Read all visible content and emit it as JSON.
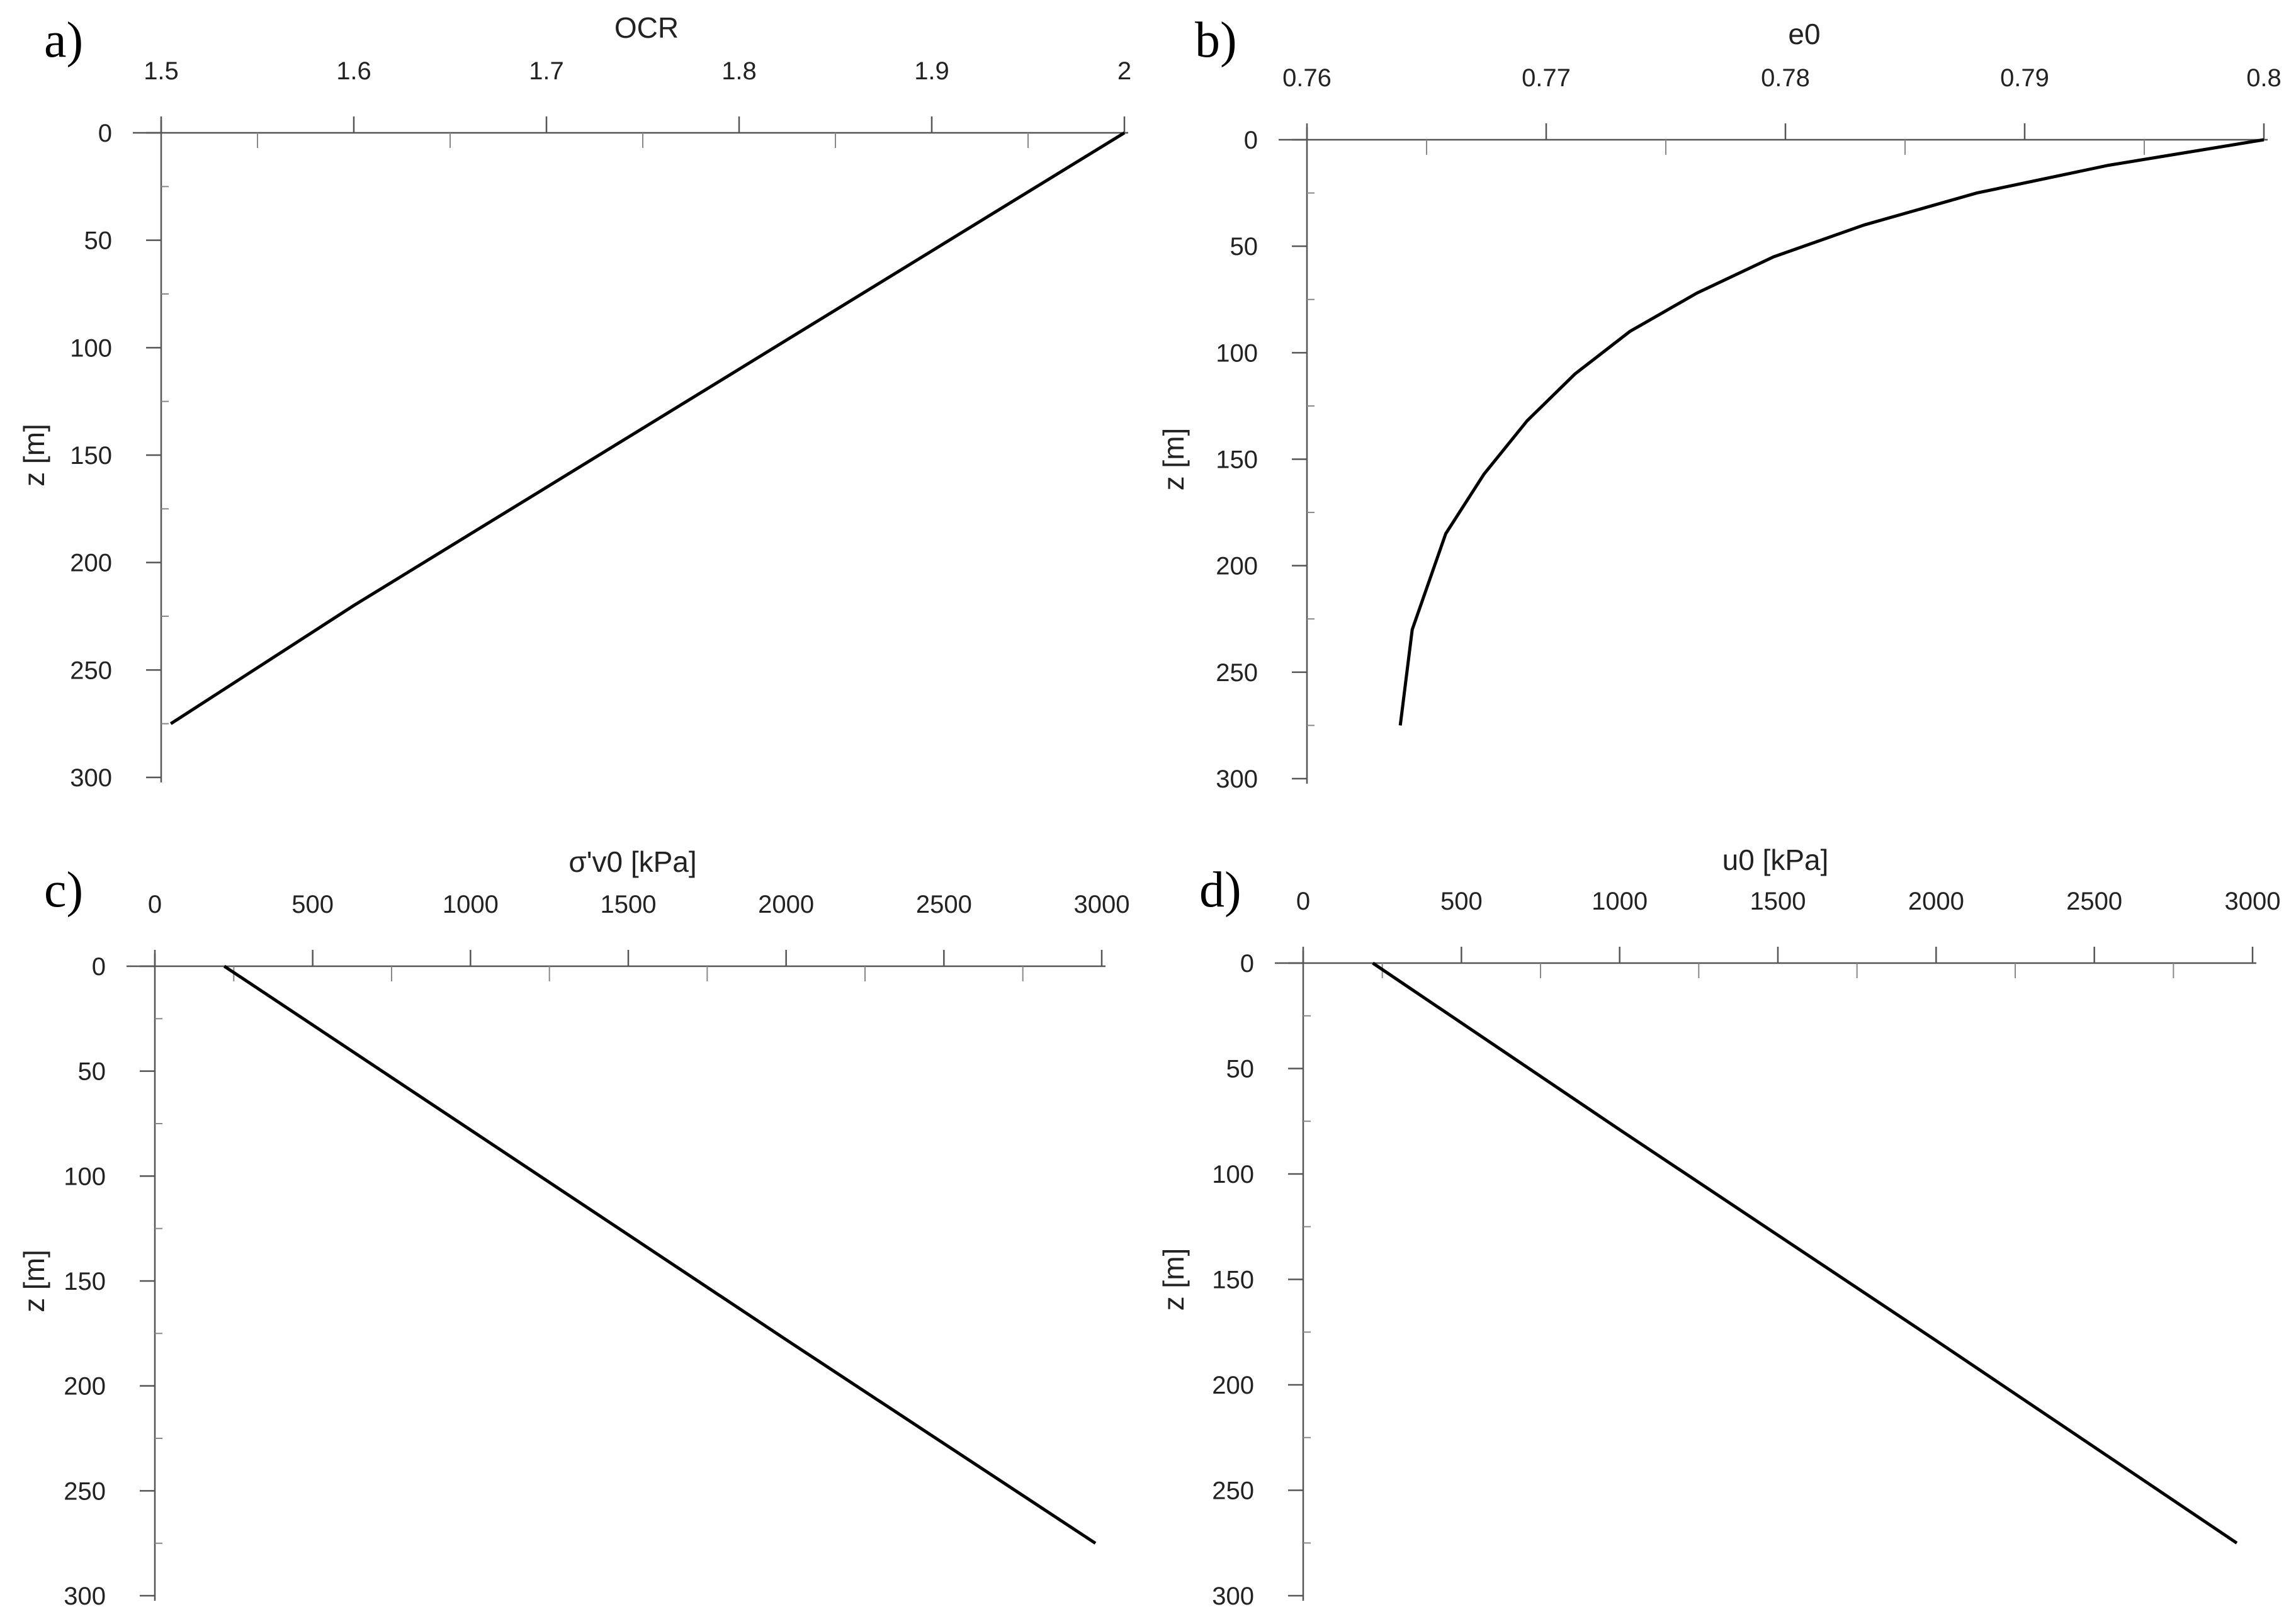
{
  "chart_data": [
    {
      "panel_letter": "a)",
      "type": "line",
      "title": "",
      "xlabel": "OCR",
      "ylabel": "z [m]",
      "x_axis_position": "top",
      "y_axis_inverted": true,
      "xlim": [
        1.5,
        2.0
      ],
      "ylim": [
        0,
        300
      ],
      "x_ticks": [
        1.5,
        1.6,
        1.7,
        1.8,
        1.9,
        2.0
      ],
      "x_tick_labels": [
        "1.5",
        "1.6",
        "1.7",
        "1.8",
        "1.9",
        "2"
      ],
      "y_ticks": [
        0,
        50,
        100,
        150,
        200,
        250,
        300
      ],
      "y_tick_labels": [
        "0",
        "50",
        "100",
        "150",
        "200",
        "250",
        "300"
      ],
      "grid": false,
      "series": [
        {
          "x": [
            2.0,
            1.9,
            1.8,
            1.7,
            1.6,
            1.505
          ],
          "y": [
            0,
            55,
            110,
            165,
            220,
            275
          ]
        }
      ]
    },
    {
      "panel_letter": "b)",
      "type": "line",
      "title": "",
      "xlabel": "e0",
      "ylabel": "z [m]",
      "x_axis_position": "top",
      "y_axis_inverted": true,
      "xlim": [
        0.76,
        0.8
      ],
      "ylim": [
        0,
        300
      ],
      "x_ticks": [
        0.76,
        0.77,
        0.78,
        0.79,
        0.8
      ],
      "x_tick_labels": [
        "0.76",
        "0.77",
        "0.78",
        "0.79",
        "0.8"
      ],
      "y_ticks": [
        0,
        50,
        100,
        150,
        200,
        250,
        300
      ],
      "y_tick_labels": [
        "0",
        "50",
        "100",
        "150",
        "200",
        "250",
        "300"
      ],
      "grid": false,
      "series": [
        {
          "x": [
            0.8,
            0.7935,
            0.788,
            0.7833,
            0.7795,
            0.7763,
            0.7735,
            0.7712,
            0.7692,
            0.7674,
            0.7658,
            0.7644,
            0.7639
          ],
          "y": [
            0,
            12,
            25,
            40,
            55,
            72,
            90,
            110,
            132,
            157,
            185,
            230,
            275
          ]
        }
      ]
    },
    {
      "panel_letter": "c)",
      "type": "line",
      "title": "",
      "xlabel": "σ'v0 [kPa]",
      "ylabel": "z [m]",
      "x_axis_position": "top",
      "y_axis_inverted": true,
      "xlim": [
        0,
        3000
      ],
      "ylim": [
        0,
        300
      ],
      "x_ticks": [
        0,
        500,
        1000,
        1500,
        2000,
        2500,
        3000
      ],
      "x_tick_labels": [
        "0",
        "500",
        "1000",
        "1500",
        "2000",
        "2500",
        "3000"
      ],
      "y_ticks": [
        0,
        50,
        100,
        150,
        200,
        250,
        300
      ],
      "y_tick_labels": [
        "0",
        "50",
        "100",
        "150",
        "200",
        "250",
        "300"
      ],
      "grid": false,
      "series": [
        {
          "x": [
            220,
            1000,
            2000,
            2980
          ],
          "y": [
            0,
            78,
            178,
            275
          ]
        }
      ]
    },
    {
      "panel_letter": "d)",
      "type": "line",
      "title": "",
      "xlabel": "u0 [kPa]",
      "ylabel": "z [m]",
      "x_axis_position": "top",
      "y_axis_inverted": true,
      "xlim": [
        0,
        3000
      ],
      "ylim": [
        0,
        300
      ],
      "x_ticks": [
        0,
        500,
        1000,
        1500,
        2000,
        2500,
        3000
      ],
      "x_tick_labels": [
        "0",
        "500",
        "1000",
        "1500",
        "2000",
        "2500",
        "3000"
      ],
      "y_ticks": [
        0,
        50,
        100,
        150,
        200,
        250,
        300
      ],
      "y_tick_labels": [
        "0",
        "50",
        "100",
        "150",
        "200",
        "250",
        "300"
      ],
      "grid": false,
      "series": [
        {
          "x": [
            220,
            1000,
            2000,
            2950
          ],
          "y": [
            0,
            79,
            179,
            275
          ]
        }
      ]
    }
  ]
}
